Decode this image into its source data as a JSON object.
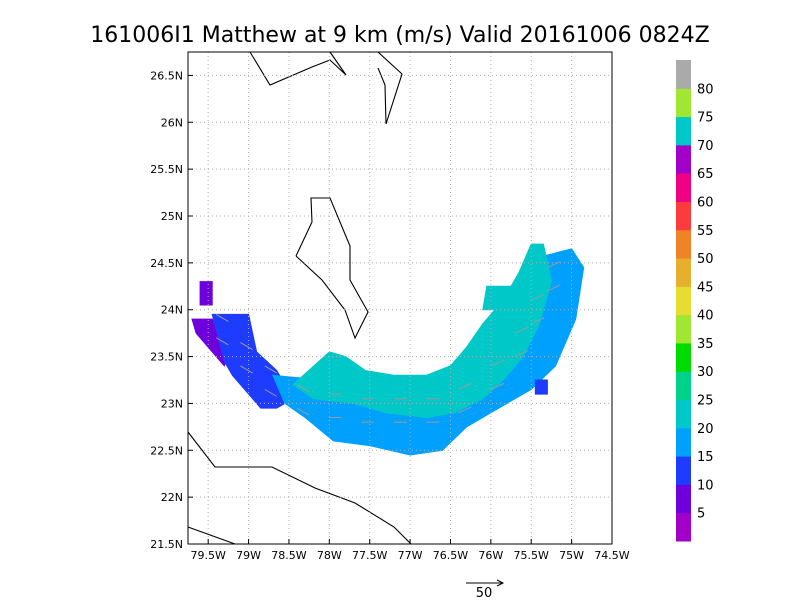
{
  "chart_data": {
    "type": "heatmap",
    "title": "161006I1 Matthew at 9 km (m/s) Valid 20161006  0824Z",
    "x_axis": {
      "range": [
        -79.75,
        -74.5
      ],
      "ticks": [
        {
          "value": -79.5,
          "label": "79.5W"
        },
        {
          "value": -79.0,
          "label": "79W"
        },
        {
          "value": -78.5,
          "label": "78.5W"
        },
        {
          "value": -78.0,
          "label": "78W"
        },
        {
          "value": -77.5,
          "label": "77.5W"
        },
        {
          "value": -77.0,
          "label": "77W"
        },
        {
          "value": -76.5,
          "label": "76.5W"
        },
        {
          "value": -76.0,
          "label": "76W"
        },
        {
          "value": -75.5,
          "label": "75.5W"
        },
        {
          "value": -75.0,
          "label": "75W"
        },
        {
          "value": -74.5,
          "label": "74.5W"
        }
      ]
    },
    "y_axis": {
      "range": [
        21.5,
        26.75
      ],
      "ticks": [
        {
          "value": 21.5,
          "label": "21.5N"
        },
        {
          "value": 22.0,
          "label": "22N"
        },
        {
          "value": 22.5,
          "label": "22.5N"
        },
        {
          "value": 23.0,
          "label": "23N"
        },
        {
          "value": 23.5,
          "label": "23.5N"
        },
        {
          "value": 24.0,
          "label": "24N"
        },
        {
          "value": 24.5,
          "label": "24.5N"
        },
        {
          "value": 25.0,
          "label": "25N"
        },
        {
          "value": 25.5,
          "label": "25.5N"
        },
        {
          "value": 26.0,
          "label": "26N"
        },
        {
          "value": 26.5,
          "label": "26.5N"
        }
      ]
    },
    "grid": true,
    "legend": {
      "placement": "right",
      "bins": [
        {
          "label": "",
          "color": "#a000c8"
        },
        {
          "label": "5",
          "color": "#6e00dc"
        },
        {
          "label": "10",
          "color": "#1e3cff"
        },
        {
          "label": "15",
          "color": "#00a0ff"
        },
        {
          "label": "20",
          "color": "#00c8c8"
        },
        {
          "label": "25",
          "color": "#00d28c"
        },
        {
          "label": "30",
          "color": "#00dc00"
        },
        {
          "label": "35",
          "color": "#a0e632"
        },
        {
          "label": "40",
          "color": "#e6dc32"
        },
        {
          "label": "45",
          "color": "#e6af2d"
        },
        {
          "label": "50",
          "color": "#f08228"
        },
        {
          "label": "55",
          "color": "#fa3c3c"
        },
        {
          "label": "60",
          "color": "#f00082"
        },
        {
          "label": "65",
          "color": "#a000c8"
        },
        {
          "label": "70",
          "color": "#00c8c8"
        },
        {
          "label": "75",
          "color": "#a0e632"
        },
        {
          "label": "80",
          "color": "#aaaaaa"
        }
      ]
    },
    "wind_regions": [
      {
        "speed_bin": "5-10",
        "color": "#6e00dc",
        "polygon": [
          [
            -79.6,
            24.3
          ],
          [
            -79.45,
            24.3
          ],
          [
            -79.45,
            24.05
          ],
          [
            -79.6,
            24.05
          ]
        ]
      },
      {
        "speed_bin": "5-10",
        "color": "#6e00dc",
        "polygon": [
          [
            -79.7,
            23.9
          ],
          [
            -79.45,
            23.9
          ],
          [
            -79.25,
            23.55
          ],
          [
            -79.3,
            23.4
          ],
          [
            -79.45,
            23.55
          ],
          [
            -79.65,
            23.75
          ]
        ]
      },
      {
        "speed_bin": "10-15",
        "color": "#1e3cff",
        "polygon": [
          [
            -79.45,
            23.95
          ],
          [
            -79.0,
            23.95
          ],
          [
            -78.9,
            23.55
          ],
          [
            -78.65,
            23.35
          ],
          [
            -78.45,
            23.05
          ],
          [
            -78.65,
            22.95
          ],
          [
            -78.85,
            22.95
          ],
          [
            -79.0,
            23.1
          ],
          [
            -79.2,
            23.3
          ],
          [
            -79.3,
            23.45
          ]
        ]
      },
      {
        "speed_bin": "15-20",
        "color": "#00a0ff",
        "polygon": [
          [
            -78.7,
            23.3
          ],
          [
            -78.1,
            23.25
          ],
          [
            -77.8,
            23.25
          ],
          [
            -77.4,
            23.25
          ],
          [
            -77.0,
            23.2
          ],
          [
            -76.6,
            23.2
          ],
          [
            -76.3,
            23.3
          ],
          [
            -76.0,
            23.5
          ],
          [
            -75.8,
            23.8
          ],
          [
            -75.6,
            24.2
          ],
          [
            -75.45,
            24.55
          ],
          [
            -75.0,
            24.65
          ],
          [
            -74.85,
            24.45
          ],
          [
            -74.95,
            23.9
          ],
          [
            -75.2,
            23.4
          ],
          [
            -75.5,
            23.15
          ],
          [
            -75.9,
            22.95
          ],
          [
            -76.3,
            22.75
          ],
          [
            -76.6,
            22.5
          ],
          [
            -77.0,
            22.45
          ],
          [
            -77.5,
            22.55
          ],
          [
            -77.95,
            22.6
          ],
          [
            -78.3,
            22.85
          ],
          [
            -78.55,
            23.0
          ]
        ]
      },
      {
        "speed_bin": "20-25",
        "color": "#00c8c8",
        "polygon": [
          [
            -78.0,
            23.55
          ],
          [
            -77.8,
            23.5
          ],
          [
            -77.55,
            23.35
          ],
          [
            -77.2,
            23.3
          ],
          [
            -76.8,
            23.3
          ],
          [
            -76.5,
            23.4
          ],
          [
            -76.3,
            23.6
          ],
          [
            -76.1,
            23.85
          ],
          [
            -75.85,
            24.1
          ],
          [
            -75.65,
            24.4
          ],
          [
            -75.5,
            24.7
          ],
          [
            -75.35,
            24.7
          ],
          [
            -75.25,
            24.3
          ],
          [
            -75.4,
            23.85
          ],
          [
            -75.6,
            23.5
          ],
          [
            -75.85,
            23.25
          ],
          [
            -76.1,
            23.05
          ],
          [
            -76.45,
            22.9
          ],
          [
            -76.8,
            22.85
          ],
          [
            -77.3,
            22.9
          ],
          [
            -77.7,
            23.0
          ],
          [
            -78.2,
            23.05
          ],
          [
            -78.45,
            23.2
          ]
        ]
      },
      {
        "speed_bin": "20-25",
        "color": "#00c8c8",
        "polygon": [
          [
            -76.05,
            24.25
          ],
          [
            -75.75,
            24.25
          ],
          [
            -75.8,
            24.0
          ],
          [
            -76.1,
            24.0
          ]
        ]
      },
      {
        "speed_bin": "10-15",
        "color": "#1e3cff",
        "polygon": [
          [
            -75.45,
            23.25
          ],
          [
            -75.3,
            23.25
          ],
          [
            -75.3,
            23.1
          ],
          [
            -75.45,
            23.1
          ]
        ]
      }
    ],
    "reference_vector": {
      "label": "50"
    }
  }
}
